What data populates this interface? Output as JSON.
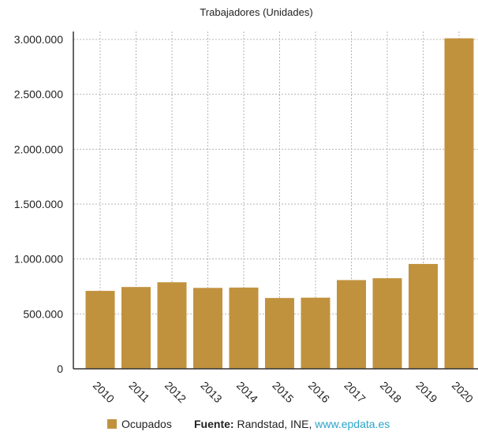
{
  "chart_data": {
    "type": "bar",
    "title": "Trabajadores (Unidades)",
    "categories": [
      "2010",
      "2011",
      "2012",
      "2013",
      "2014",
      "2015",
      "2016",
      "2017",
      "2018",
      "2019",
      "2020"
    ],
    "series": [
      {
        "name": "Ocupados",
        "values": [
          710000,
          745000,
          788000,
          737000,
          740000,
          645000,
          648000,
          808000,
          825000,
          955000,
          3010000
        ]
      }
    ],
    "ylim": [
      0,
      3000000
    ],
    "yticks": [
      0,
      500000,
      1000000,
      1500000,
      2000000,
      2500000,
      3000000
    ],
    "ytick_labels": [
      "0",
      "500.000",
      "1.000.000",
      "1.500.000",
      "2.000.000",
      "2.500.000",
      "3.000.000"
    ],
    "grid": true,
    "legend_position": "bottom-left",
    "bar_color": "#c1923e"
  },
  "footer": {
    "legend_label": "Ocupados",
    "source_label": "Fuente:",
    "source_text": " Randstad, INE, ",
    "source_url": "www.epdata.es"
  }
}
